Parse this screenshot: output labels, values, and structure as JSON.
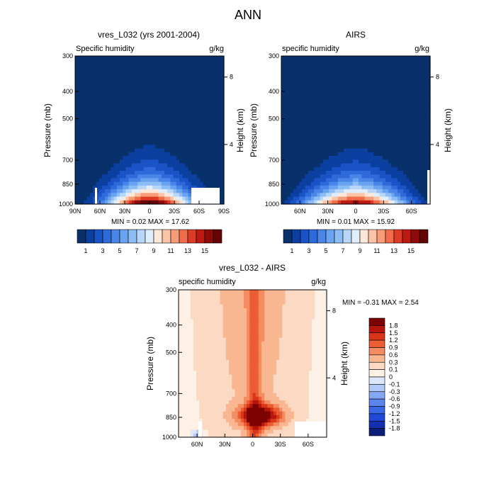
{
  "figure": {
    "main_title": "ANN"
  },
  "colors": {
    "levels_abs": [
      "#08306b",
      "#0b3fa0",
      "#1a53c6",
      "#2e6ad9",
      "#4a86e8",
      "#6aa3f0",
      "#8dbdf5",
      "#b7d6f8",
      "#e0edfb",
      "#fde7d8",
      "#fbc4a6",
      "#f79c78",
      "#f16c4a",
      "#de3b26",
      "#bd1a12",
      "#8e0b08",
      "#650404"
    ],
    "levels_diff": [
      "#0b1f7a",
      "#1430b0",
      "#2148d6",
      "#3b66e6",
      "#5d85ee",
      "#84a7f3",
      "#b0c9f7",
      "#dce7fb",
      "#fdf0e4",
      "#fcd9c2",
      "#f9b791",
      "#f48c62",
      "#ec5d34",
      "#d93618",
      "#b5150a",
      "#7d0303"
    ]
  },
  "chart_data": [
    {
      "type": "heatmap",
      "title": "vres_L032 (yrs 2001-2004)",
      "left_label": "Specific humidity",
      "units": "g/kg",
      "ylabel": "Pressure (mb)",
      "ylabel_right": "Height (km)",
      "y_ticks": [
        "300",
        "400",
        "500",
        "700",
        "850",
        "1000"
      ],
      "y_ticks_right": [
        "8",
        "4"
      ],
      "x_ticks": [
        "90N",
        "60N",
        "30N",
        "0",
        "30S",
        "60S",
        "90S"
      ],
      "min_text": "MIN =   0.02   MAX =   17.62",
      "peak": 17.62,
      "colorbar_labels": [
        "1",
        "3",
        "5",
        "7",
        "9",
        "11",
        "13",
        "15"
      ]
    },
    {
      "type": "heatmap",
      "title": "AIRS",
      "left_label": "specific humidity",
      "units": "g/kg",
      "ylabel": "Pressure (mb)",
      "ylabel_right": "Height (km)",
      "y_ticks": [
        "300",
        "400",
        "500",
        "700",
        "850",
        "1000"
      ],
      "y_ticks_right": [
        "8",
        "4"
      ],
      "x_ticks": [
        "60N",
        "30N",
        "0",
        "30S",
        "60S"
      ],
      "min_text": "MIN =   0.01   MAX =   15.92",
      "peak": 15.92,
      "colorbar_labels": [
        "1",
        "3",
        "5",
        "7",
        "9",
        "11",
        "13",
        "15"
      ]
    },
    {
      "type": "heatmap",
      "title": "vres_L032 - AIRS",
      "left_label": "specific humidity",
      "units": "g/kg",
      "ylabel": "Pressure (mb)",
      "ylabel_right": "Height (km)",
      "y_ticks": [
        "300",
        "400",
        "500",
        "700",
        "850",
        "1000"
      ],
      "y_ticks_right": [
        "8",
        "4"
      ],
      "x_ticks": [
        "60N",
        "30N",
        "0",
        "30S",
        "60S"
      ],
      "min_text": "MIN =  -0.31   MAX =    2.54",
      "colorbar_labels": [
        "1.8",
        "1.5",
        "1.2",
        "0.9",
        "0.6",
        "0.3",
        "0.1",
        "0",
        "-0.1",
        "-0.3",
        "-0.6",
        "-0.9",
        "-1.2",
        "-1.5",
        "-1.8"
      ]
    }
  ]
}
